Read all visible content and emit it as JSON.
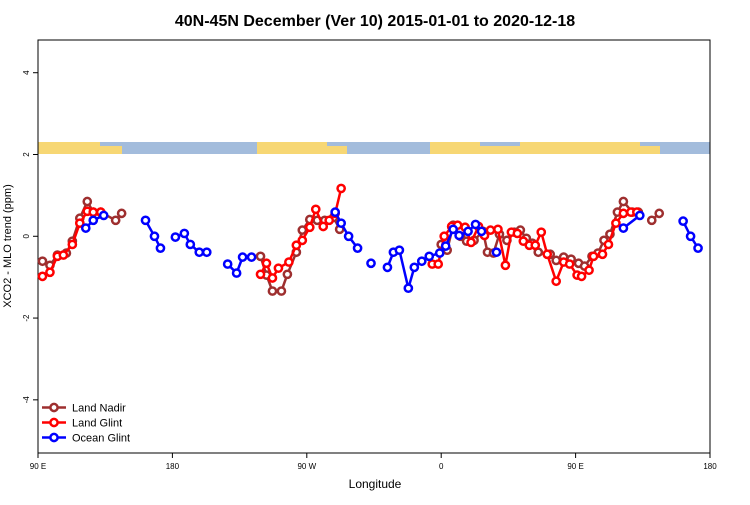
{
  "chart_data": {
    "type": "line",
    "title": "40N-45N December (Ver 10)   2015-01-01 to 2020-12-18",
    "x_label": "Longitude",
    "y_label": "XCO2 - MLO trend (ppm)",
    "xlim": [
      90,
      540
    ],
    "ylim": [
      -5.3,
      4.8
    ],
    "xticks": [
      {
        "value": 90,
        "label": "90 E"
      },
      {
        "value": 180,
        "label": "180"
      },
      {
        "value": 270,
        "label": "90 W"
      },
      {
        "value": 360,
        "label": "0"
      },
      {
        "value": 450,
        "label": "90 E"
      },
      {
        "value": 540,
        "label": "180"
      }
    ],
    "yticks": [
      -4,
      -2,
      0,
      2,
      4
    ],
    "legend": "bottomleft",
    "series": [
      {
        "name": "Land Nadir",
        "color": "#9e2f2f",
        "x": [
          93,
          98,
          103,
          109,
          113,
          118,
          123,
          127,
          132,
          142,
          146,
          null,
          239,
          243,
          247,
          253,
          257,
          263,
          267,
          272,
          277,
          282,
          288,
          292,
          null,
          360,
          364,
          368,
          373,
          377,
          382,
          388,
          391,
          395,
          399,
          404,
          409,
          413,
          417,
          421,
          425,
          433,
          437,
          442,
          447,
          452,
          456,
          461,
          465,
          469,
          473,
          478,
          482,
          488,
          492,
          null,
          501,
          506
        ],
        "values": [
          -0.61,
          -0.71,
          -0.46,
          -0.41,
          -0.12,
          0.44,
          0.85,
          0.59,
          0.59,
          0.39,
          0.56,
          null,
          -0.49,
          -0.95,
          -1.34,
          -1.34,
          -0.93,
          -0.39,
          0.15,
          0.41,
          0.39,
          0.39,
          0.46,
          0.17,
          null,
          -0.2,
          -0.34,
          0.27,
          0,
          -0.12,
          -0.1,
          0.12,
          -0.39,
          -0.41,
          0.05,
          -0.1,
          0.1,
          0.15,
          -0.05,
          -0.17,
          -0.39,
          -0.44,
          -0.59,
          -0.51,
          -0.56,
          -0.66,
          -0.73,
          -0.49,
          -0.41,
          -0.1,
          0.05,
          0.59,
          0.85,
          0.59,
          0.59,
          null,
          0.39,
          0.56
        ]
      },
      {
        "name": "Land Glint",
        "color": "#ff0000",
        "x": [
          93,
          98,
          103,
          107,
          113,
          118,
          123,
          127,
          132,
          null,
          239,
          243,
          247,
          251,
          258,
          263,
          267,
          272,
          276,
          281,
          285,
          289,
          293,
          null,
          354,
          358,
          362,
          367,
          371,
          376,
          380,
          385,
          389,
          393,
          398,
          403,
          407,
          411,
          415,
          419,
          423,
          427,
          431,
          437,
          442,
          446,
          451,
          454,
          459,
          462,
          468,
          472,
          477,
          482,
          487,
          491
        ],
        "values": [
          -0.98,
          -0.88,
          -0.49,
          -0.46,
          -0.2,
          0.32,
          0.61,
          0.59,
          0.59,
          null,
          -0.93,
          -0.66,
          -1.02,
          -0.78,
          -0.63,
          -0.22,
          -0.1,
          0.22,
          0.66,
          0.24,
          0.39,
          0.56,
          1.17,
          null,
          -0.68,
          -0.68,
          0,
          0.24,
          0.27,
          0.22,
          -0.15,
          0.24,
          0.02,
          0.15,
          0.17,
          -0.71,
          0.1,
          0.07,
          -0.12,
          -0.22,
          -0.22,
          0.1,
          -0.44,
          -1.1,
          -0.63,
          -0.68,
          -0.95,
          -0.98,
          -0.83,
          -0.49,
          -0.44,
          -0.2,
          0.32,
          0.56,
          0.59,
          0.59
        ]
      },
      {
        "name": "Ocean Glint",
        "color": "#0000ff",
        "x": [
          122,
          127,
          134,
          null,
          162,
          168,
          172,
          null,
          182,
          188,
          192,
          198,
          203,
          null,
          217,
          223,
          227,
          233,
          null,
          289,
          293,
          298,
          304,
          null,
          313,
          null,
          324,
          328,
          332,
          338,
          342,
          347,
          352,
          359,
          363,
          368,
          372,
          378,
          383,
          387,
          null,
          397,
          null,
          482,
          493,
          null,
          522,
          527,
          532
        ],
        "values": [
          0.2,
          0.39,
          0.51,
          null,
          0.39,
          0,
          -0.29,
          null,
          -0.02,
          0.07,
          -0.2,
          -0.39,
          -0.39,
          null,
          -0.68,
          -0.9,
          -0.51,
          -0.51,
          null,
          0.59,
          0.32,
          0,
          -0.29,
          null,
          -0.66,
          null,
          -0.76,
          -0.39,
          -0.34,
          -1.27,
          -0.76,
          -0.61,
          -0.49,
          -0.41,
          -0.24,
          0.17,
          0.02,
          0.12,
          0.29,
          0.12,
          null,
          -0.39,
          null,
          0.2,
          0.51,
          null,
          0.37,
          0,
          -0.29
        ]
      }
    ]
  }
}
